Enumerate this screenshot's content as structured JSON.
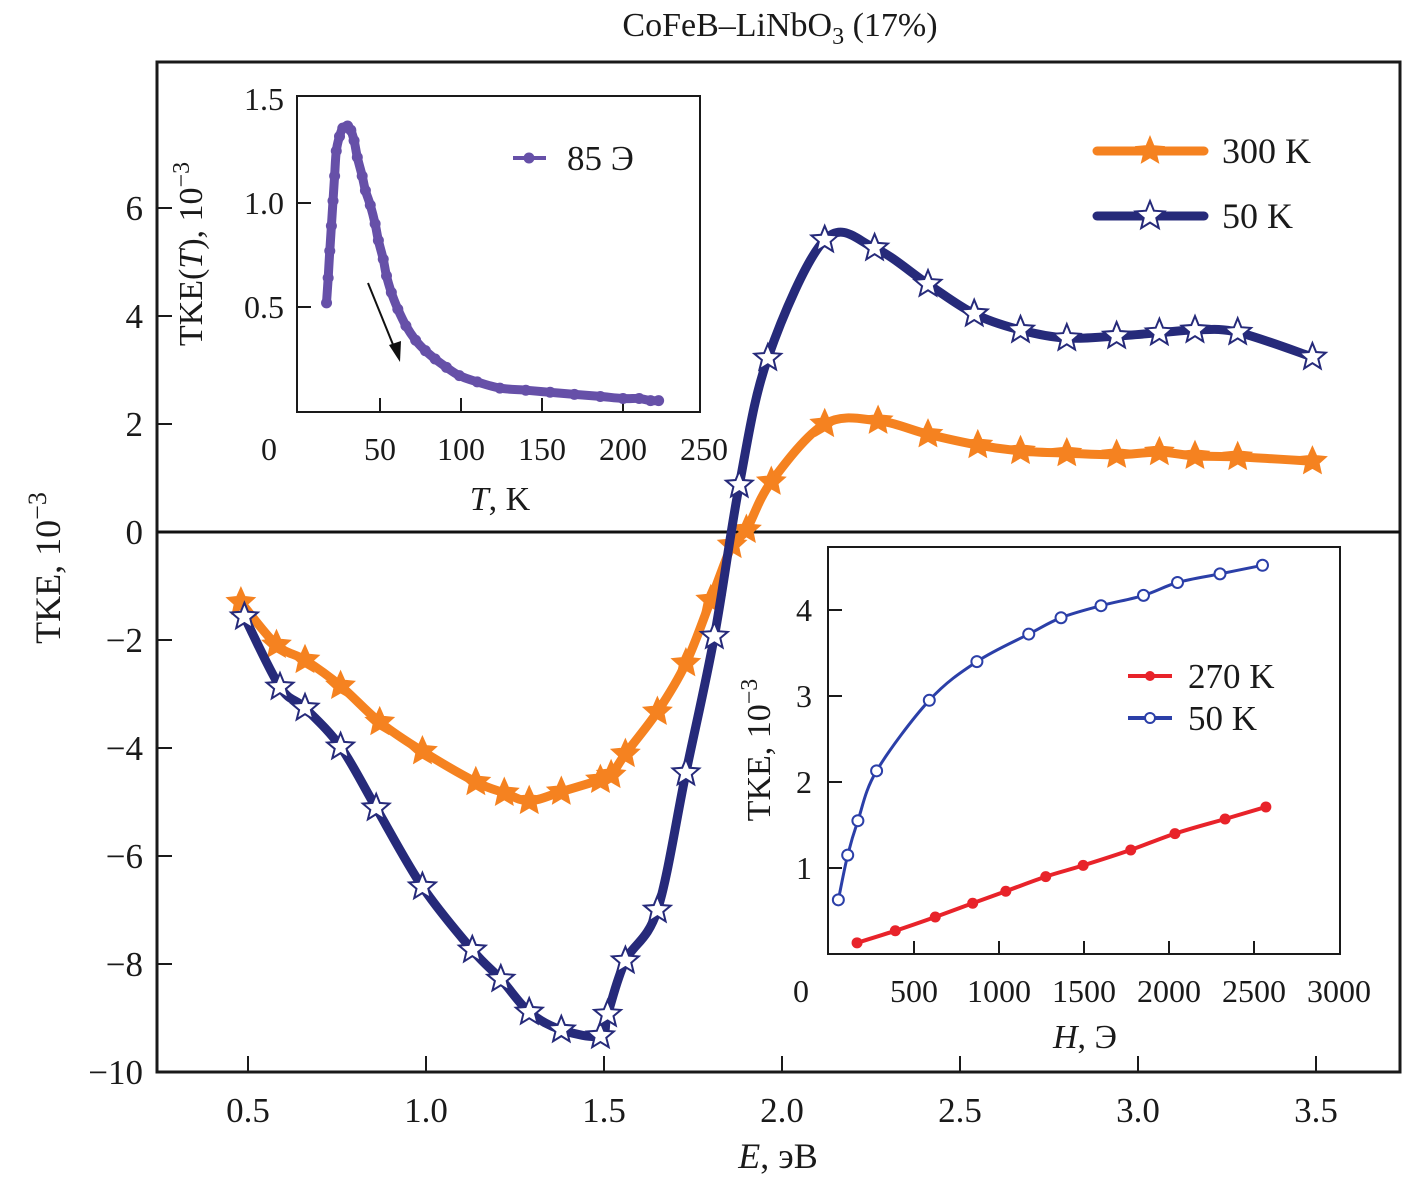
{
  "chart_data": [
    {
      "id": "main",
      "type": "line",
      "title": "CoFeB–LiNbO",
      "title_subscript": "3",
      "title_suffix": " (17%)",
      "xlabel_italic": "E",
      "xlabel_rest": ", эB",
      "ylabel": "TKE, 10",
      "ylabel_exp": "−3",
      "xlim": [
        0.23,
        3.77
      ],
      "ylim": [
        -10,
        8.7
      ],
      "xticks": [
        0.5,
        1.0,
        1.5,
        2.0,
        2.5,
        3.0,
        3.5
      ],
      "xtick_labels": [
        "0.5",
        "1.0",
        "1.5",
        "2.0",
        "2.5",
        "3.0",
        "3.5"
      ],
      "yticks": [
        -10,
        -8,
        -6,
        -4,
        -2,
        0,
        2,
        4,
        6
      ],
      "ytick_labels": [
        "−10",
        "−8",
        "−6",
        "−4",
        "−2",
        "0",
        "2",
        "4",
        "6"
      ],
      "zero_line": true,
      "grid": false,
      "legend_position": "top-right",
      "series": [
        {
          "name": "300 K",
          "color": "#f58220",
          "marker": "filled-star",
          "x": [
            0.48,
            0.58,
            0.66,
            0.76,
            0.87,
            0.99,
            1.14,
            1.22,
            1.29,
            1.38,
            1.49,
            1.52,
            1.56,
            1.65,
            1.73,
            1.8,
            1.86,
            1.9,
            1.97,
            2.12,
            2.27,
            2.41,
            2.55,
            2.67,
            2.8,
            2.94,
            3.06,
            3.16,
            3.28,
            3.49
          ],
          "y": [
            -1.3,
            -2.09,
            -2.37,
            -2.85,
            -3.52,
            -4.06,
            -4.63,
            -4.83,
            -4.98,
            -4.81,
            -4.59,
            -4.5,
            -4.11,
            -3.33,
            -2.43,
            -1.26,
            -0.24,
            0.04,
            0.93,
            2.0,
            2.06,
            1.81,
            1.61,
            1.5,
            1.46,
            1.43,
            1.48,
            1.41,
            1.39,
            1.31
          ]
        },
        {
          "name": "50 K",
          "color": "#262a7a",
          "marker": "open-star",
          "x": [
            0.49,
            0.59,
            0.66,
            0.76,
            0.86,
            0.99,
            1.13,
            1.21,
            1.29,
            1.38,
            1.49,
            1.51,
            1.56,
            1.65,
            1.73,
            1.81,
            1.88,
            1.96,
            2.12,
            2.26,
            2.41,
            2.54,
            2.67,
            2.8,
            2.94,
            3.06,
            3.16,
            3.28,
            3.49
          ],
          "y": [
            -1.57,
            -2.87,
            -3.26,
            -3.98,
            -5.11,
            -6.57,
            -7.74,
            -8.28,
            -8.89,
            -9.22,
            -9.33,
            -8.93,
            -7.94,
            -7.0,
            -4.46,
            -1.93,
            0.87,
            3.22,
            5.41,
            5.26,
            4.59,
            4.04,
            3.74,
            3.59,
            3.63,
            3.69,
            3.74,
            3.7,
            3.24
          ]
        }
      ]
    },
    {
      "id": "inset-temperature",
      "type": "scatter",
      "xlabel_italic": "T",
      "xlabel_rest": ", K",
      "ylabel": "TKE(",
      "ylabel_italic": "T",
      "ylabel_rest": "), 10",
      "ylabel_exp": "−3",
      "xlim": [
        0,
        250
      ],
      "ylim": [
        0,
        1.5
      ],
      "xticks": [
        0,
        50,
        100,
        150,
        200,
        250
      ],
      "xtick_labels": [
        "0",
        "50",
        "100",
        "150",
        "200",
        "250"
      ],
      "yticks": [
        0.5,
        1.0,
        1.5
      ],
      "ytick_labels": [
        "0.5",
        "1.0",
        "1.5"
      ],
      "legend_position": "top-right",
      "annotation": "arrow pointing down-right (cooling direction)",
      "series": [
        {
          "name": "85 Э",
          "color": "#6650a8",
          "marker": "filled-circle",
          "x": [
            17,
            18,
            19,
            20,
            21,
            22,
            23,
            25,
            27,
            30,
            32,
            34,
            36,
            39,
            41,
            44,
            47,
            49,
            52,
            54,
            57,
            61,
            66,
            72,
            78,
            84,
            91,
            99,
            110,
            124,
            140,
            155,
            170,
            186,
            200,
            210,
            217,
            222
          ],
          "y": [
            0.52,
            0.64,
            0.77,
            0.89,
            1.01,
            1.13,
            1.25,
            1.32,
            1.36,
            1.37,
            1.35,
            1.3,
            1.22,
            1.13,
            1.06,
            0.99,
            0.9,
            0.82,
            0.73,
            0.65,
            0.57,
            0.49,
            0.41,
            0.34,
            0.29,
            0.25,
            0.21,
            0.17,
            0.14,
            0.11,
            0.1,
            0.09,
            0.08,
            0.07,
            0.06,
            0.06,
            0.05,
            0.05
          ]
        }
      ]
    },
    {
      "id": "inset-field",
      "type": "line",
      "xlabel_italic": "H",
      "xlabel_rest": ", Э",
      "ylabel": "TKE, 10",
      "ylabel_exp": "−3",
      "xlim": [
        0,
        3000
      ],
      "ylim": [
        0,
        4.8
      ],
      "xticks": [
        0,
        500,
        1000,
        1500,
        2000,
        2500,
        3000
      ],
      "xtick_labels": [
        "0",
        "500",
        "1000",
        "1500",
        "2000",
        "2500",
        "3000"
      ],
      "yticks": [
        1,
        2,
        3,
        4
      ],
      "ytick_labels": [
        "1",
        "2",
        "3",
        "4"
      ],
      "legend_position": "center-right",
      "series": [
        {
          "name": "270 K",
          "color": "#e8232a",
          "marker": "filled-circle",
          "x": [
            165,
            390,
            625,
            845,
            1040,
            1275,
            1495,
            1775,
            2035,
            2330,
            2570
          ],
          "y": [
            0.13,
            0.27,
            0.43,
            0.59,
            0.73,
            0.9,
            1.03,
            1.21,
            1.4,
            1.57,
            1.71
          ]
        },
        {
          "name": "50 K",
          "color": "#2b3fa8",
          "marker": "open-circle",
          "x": [
            55,
            110,
            170,
            280,
            590,
            870,
            1175,
            1365,
            1600,
            1850,
            2050,
            2300,
            2550
          ],
          "y": [
            0.63,
            1.15,
            1.55,
            2.13,
            2.95,
            3.4,
            3.72,
            3.91,
            4.05,
            4.17,
            4.32,
            4.42,
            4.52
          ]
        }
      ]
    }
  ]
}
